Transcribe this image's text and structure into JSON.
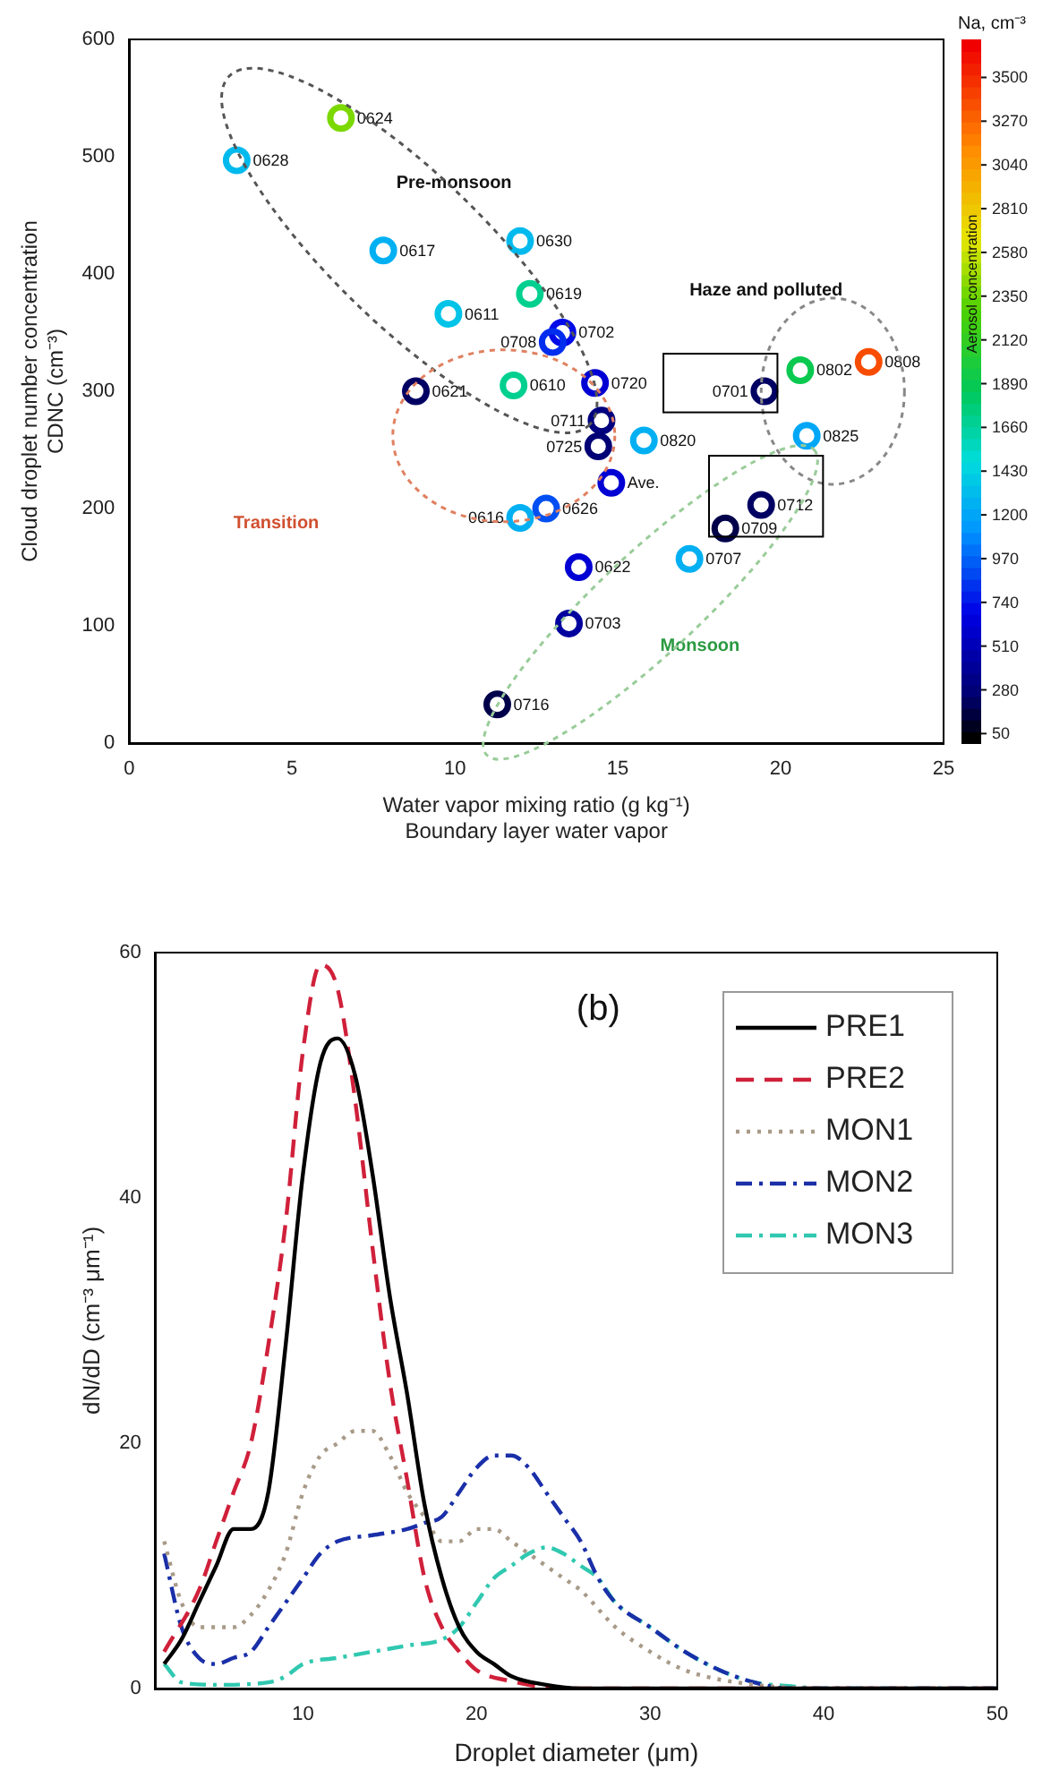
{
  "chart_data": [
    {
      "type": "scatter",
      "xlabel": "Water vapor mixing ratio (g kg⁻¹)\nBoundary layer water vapor",
      "ylabel": "Cloud droplet number concentration\nCDNC (cm⁻³)",
      "clabel": "Na, cm⁻³",
      "marker": "circle",
      "x": [
        3.3,
        6.5,
        7.8,
        9.8,
        12.0,
        12.3,
        13.3,
        13.0,
        8.8,
        11.8,
        14.3,
        14.5,
        14.4,
        15.8,
        14.8,
        12.0,
        12.8,
        13.8,
        13.5,
        11.3,
        17.2,
        18.3,
        19.4,
        19.5,
        20.6,
        22.7,
        20.8
      ],
      "values": [
        497,
        533,
        420,
        366,
        428,
        383,
        350,
        342,
        300,
        305,
        307,
        275,
        253,
        258,
        222,
        192,
        200,
        150,
        102,
        33,
        157,
        183,
        203,
        300,
        318,
        325,
        262
      ],
      "cvalues": [
        1300,
        2400,
        1250,
        1350,
        1300,
        1700,
        700,
        800,
        200,
        1700,
        600,
        280,
        250,
        1250,
        600,
        1250,
        900,
        600,
        400,
        150,
        1250,
        150,
        200,
        200,
        1900,
        3400,
        1200
      ],
      "xlim": [
        0,
        25
      ],
      "xticks": [
        0,
        5,
        10,
        15,
        20,
        25
      ],
      "ylim": [
        0,
        600
      ],
      "yticks": [
        0,
        100,
        200,
        300,
        400,
        500,
        600
      ],
      "clim": [
        0,
        3700
      ],
      "cticks": [
        50,
        280,
        510,
        740,
        970,
        1200,
        1430,
        1660,
        1890,
        2120,
        2350,
        2580,
        2810,
        3040,
        3270,
        3500
      ],
      "annotations": [
        {
          "text": "0628",
          "x": 3.3,
          "y": 497
        },
        {
          "text": "0624",
          "x": 6.5,
          "y": 533
        },
        {
          "text": "0617",
          "x": 7.8,
          "y": 420
        },
        {
          "text": "0611",
          "x": 9.8,
          "y": 366
        },
        {
          "text": "0630",
          "x": 12.0,
          "y": 428
        },
        {
          "text": "0619",
          "x": 12.3,
          "y": 383
        },
        {
          "text": "0702",
          "x": 13.3,
          "y": 350
        },
        {
          "text": "0708",
          "x": 13.0,
          "y": 342
        },
        {
          "text": "0621",
          "x": 8.8,
          "y": 300
        },
        {
          "text": "0610",
          "x": 11.8,
          "y": 305
        },
        {
          "text": "0720",
          "x": 14.3,
          "y": 307
        },
        {
          "text": "0711",
          "x": 14.5,
          "y": 275
        },
        {
          "text": "0725",
          "x": 14.4,
          "y": 253
        },
        {
          "text": "0820",
          "x": 15.8,
          "y": 258
        },
        {
          "text": "Ave.",
          "x": 14.8,
          "y": 222
        },
        {
          "text": "0616",
          "x": 12.0,
          "y": 192
        },
        {
          "text": "0626",
          "x": 12.8,
          "y": 200
        },
        {
          "text": "0622",
          "x": 13.8,
          "y": 150
        },
        {
          "text": "0703",
          "x": 13.5,
          "y": 102
        },
        {
          "text": "0716",
          "x": 11.3,
          "y": 33
        },
        {
          "text": "0707",
          "x": 17.2,
          "y": 157
        },
        {
          "text": "0709",
          "x": 18.3,
          "y": 183
        },
        {
          "text": "0712",
          "x": 19.4,
          "y": 203
        },
        {
          "text": "0701",
          "x": 19.5,
          "y": 300
        },
        {
          "text": "0802",
          "x": 20.6,
          "y": 318
        },
        {
          "text": "0808",
          "x": 22.7,
          "y": 325
        },
        {
          "text": "0825",
          "x": 20.8,
          "y": 262
        },
        "Pre-monsoon",
        "Haze and polluted",
        "Transition",
        "Monsoon",
        "Aerosol concentration"
      ]
    },
    {
      "type": "line",
      "xlabel": "Droplet diameter (μm)",
      "ylabel": "dN/dD (cm⁻³ μm⁻¹)",
      "legend": "top right",
      "annotations": [
        "(b)"
      ],
      "xlim": [
        1.5,
        50
      ],
      "xticks": [
        10,
        20,
        30,
        40,
        50
      ],
      "ylim": [
        0,
        60
      ],
      "yticks": [
        0,
        20,
        40,
        60
      ],
      "series": [
        {
          "name": "PRE1",
          "color": "#000000",
          "line_style": "solid",
          "x": [
            2,
            3,
            4,
            5,
            6,
            7,
            8,
            9,
            10,
            11,
            12,
            13,
            14,
            15,
            16,
            17,
            18,
            19,
            20,
            21,
            22,
            24,
            26,
            30,
            40,
            50
          ],
          "values": [
            2,
            4,
            7,
            10,
            13,
            13,
            16,
            28,
            42,
            51,
            53,
            50,
            42,
            32,
            24,
            15,
            9,
            5,
            3,
            2,
            1,
            0.3,
            0,
            0,
            0,
            0
          ]
        },
        {
          "name": "PRE2",
          "color": "#d0203a",
          "line_style": "dashed",
          "x": [
            2,
            4,
            5,
            6,
            7,
            8,
            9,
            10,
            11,
            12,
            13,
            14,
            15,
            16,
            17,
            18,
            19,
            20,
            22,
            25,
            50
          ],
          "values": [
            3,
            8,
            12,
            16,
            20,
            28,
            38,
            52,
            59,
            57,
            48,
            36,
            25,
            17,
            9,
            5,
            3,
            1.5,
            0.6,
            0,
            0
          ]
        },
        {
          "name": "MON1",
          "color": "#a89a88",
          "line_style": "dotted",
          "x": [
            2,
            3,
            4,
            5,
            6,
            7,
            8,
            9,
            10,
            11,
            12,
            13,
            14,
            15,
            16,
            17,
            18,
            19,
            20,
            21,
            22,
            23,
            24,
            25,
            26,
            28,
            30,
            32,
            35,
            40,
            50
          ],
          "values": [
            12,
            7,
            5,
            5,
            5,
            6,
            8,
            11,
            16,
            19,
            20,
            21,
            21,
            19,
            16,
            14,
            12,
            12,
            13,
            13,
            12,
            11,
            10,
            9,
            8,
            5,
            3,
            1.5,
            0.5,
            0,
            0
          ]
        },
        {
          "name": "MON2",
          "color": "#1a2fa8",
          "line_style": "dashdot",
          "x": [
            2,
            3,
            4,
            5,
            6,
            7,
            8,
            9,
            10,
            11,
            12,
            14,
            16,
            17,
            18,
            19,
            20,
            21,
            22,
            23,
            24,
            25,
            26,
            27,
            28,
            30,
            32,
            34,
            36,
            38,
            50
          ],
          "values": [
            11,
            5,
            2.5,
            2,
            2.5,
            3,
            5,
            7,
            9,
            11,
            12,
            12.5,
            13,
            13.5,
            14,
            16,
            18,
            19,
            19,
            18,
            16,
            14,
            12,
            9,
            7,
            5,
            3,
            1.5,
            0.5,
            0,
            0
          ]
        },
        {
          "name": "MON3",
          "color": "#30c8b0",
          "line_style": "dashdot",
          "x": [
            2,
            3,
            5,
            8,
            9,
            10,
            12,
            14,
            16,
            18,
            19,
            20,
            21,
            22,
            23,
            24,
            25,
            26,
            27,
            28,
            30,
            32,
            34,
            36,
            38,
            40,
            50
          ],
          "values": [
            2,
            0.5,
            0.3,
            0.5,
            1,
            2,
            2.5,
            3,
            3.5,
            4,
            5,
            7,
            9,
            10,
            11,
            11.5,
            11,
            10,
            9,
            7,
            5,
            3,
            1.5,
            0.5,
            0.2,
            0,
            0
          ]
        }
      ]
    }
  ]
}
